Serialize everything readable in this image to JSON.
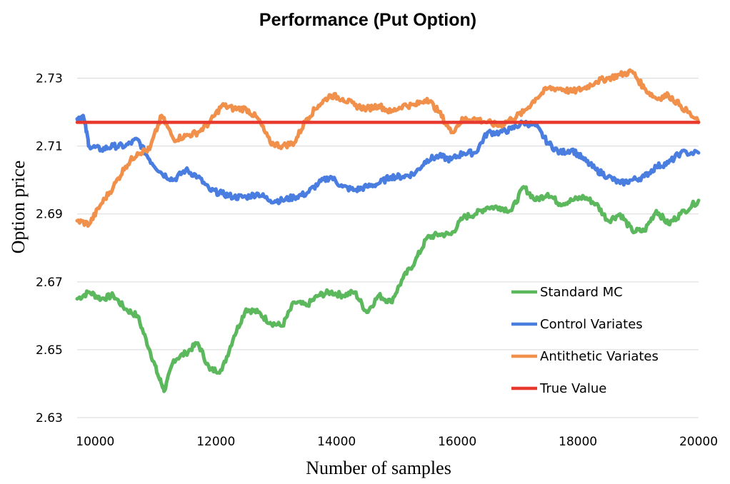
{
  "chart_data": {
    "type": "line",
    "title": "Performance (Put Option)",
    "xlabel": "Number of samples",
    "ylabel": "Option price",
    "xlim": [
      9700,
      20000
    ],
    "ylim": [
      2.63,
      2.74
    ],
    "x_ticks": [
      10000,
      12000,
      14000,
      16000,
      18000,
      20000
    ],
    "y_ticks": [
      2.63,
      2.65,
      2.67,
      2.69,
      2.71,
      2.73
    ],
    "y_tick_labels": [
      "2.63",
      "2.65",
      "2.67",
      "2.69",
      "2.71",
      "2.73"
    ],
    "grid": "horizontal",
    "legend_position": "bottom-right",
    "series": [
      {
        "name": "Standard MC",
        "color": "#5cb85c",
        "x": [
          9700,
          9900,
          10100,
          10300,
          10500,
          10700,
          10900,
          11050,
          11150,
          11300,
          11500,
          11700,
          11900,
          12100,
          12300,
          12500,
          12700,
          12900,
          13100,
          13300,
          13500,
          13700,
          13900,
          14100,
          14300,
          14500,
          14700,
          14900,
          15100,
          15300,
          15500,
          15700,
          15900,
          16100,
          16300,
          16500,
          16700,
          16900,
          17100,
          17300,
          17500,
          17700,
          17900,
          18100,
          18300,
          18500,
          18700,
          18900,
          19100,
          19300,
          19500,
          19700,
          20000
        ],
        "values": [
          2.665,
          2.667,
          2.665,
          2.666,
          2.662,
          2.66,
          2.65,
          2.642,
          2.638,
          2.647,
          2.649,
          2.652,
          2.644,
          2.644,
          2.654,
          2.662,
          2.661,
          2.658,
          2.657,
          2.664,
          2.663,
          2.666,
          2.667,
          2.666,
          2.667,
          2.661,
          2.666,
          2.664,
          2.671,
          2.676,
          2.683,
          2.684,
          2.684,
          2.689,
          2.69,
          2.692,
          2.692,
          2.691,
          2.698,
          2.694,
          2.696,
          2.693,
          2.694,
          2.695,
          2.693,
          2.688,
          2.69,
          2.685,
          2.685,
          2.691,
          2.687,
          2.69,
          2.694
        ]
      },
      {
        "name": "Control Variates",
        "color": "#4a7de0",
        "x": [
          9700,
          9800,
          9900,
          10100,
          10300,
          10500,
          10700,
          10900,
          11100,
          11300,
          11500,
          11700,
          11900,
          12100,
          12300,
          12500,
          12700,
          12900,
          13100,
          13300,
          13500,
          13700,
          13900,
          14100,
          14300,
          14500,
          14700,
          14900,
          15100,
          15300,
          15500,
          15700,
          15900,
          16100,
          16300,
          16500,
          16700,
          16900,
          17100,
          17300,
          17500,
          17700,
          17900,
          18100,
          18300,
          18500,
          18700,
          18900,
          19100,
          19300,
          19500,
          19700,
          20000
        ],
        "values": [
          2.718,
          2.719,
          2.71,
          2.709,
          2.71,
          2.71,
          2.712,
          2.706,
          2.702,
          2.7,
          2.703,
          2.701,
          2.697,
          2.696,
          2.695,
          2.695,
          2.696,
          2.694,
          2.694,
          2.695,
          2.696,
          2.699,
          2.701,
          2.698,
          2.697,
          2.698,
          2.699,
          2.701,
          2.701,
          2.702,
          2.706,
          2.707,
          2.706,
          2.708,
          2.708,
          2.714,
          2.714,
          2.715,
          2.717,
          2.716,
          2.711,
          2.708,
          2.709,
          2.706,
          2.703,
          2.701,
          2.699,
          2.7,
          2.701,
          2.704,
          2.705,
          2.708,
          2.708
        ]
      },
      {
        "name": "Antithetic Variates",
        "color": "#f0904a",
        "x": [
          9700,
          9900,
          10100,
          10300,
          10500,
          10700,
          10900,
          11100,
          11300,
          11500,
          11700,
          11900,
          12100,
          12300,
          12500,
          12700,
          12900,
          13100,
          13300,
          13500,
          13700,
          13900,
          14100,
          14300,
          14500,
          14700,
          14900,
          15100,
          15300,
          15500,
          15700,
          15900,
          16100,
          16300,
          16500,
          16700,
          16900,
          17100,
          17300,
          17500,
          17700,
          17900,
          18100,
          18300,
          18500,
          18700,
          18900,
          19100,
          19300,
          19500,
          19700,
          20000
        ],
        "values": [
          2.688,
          2.687,
          2.693,
          2.698,
          2.704,
          2.708,
          2.709,
          2.719,
          2.712,
          2.713,
          2.714,
          2.717,
          2.722,
          2.721,
          2.721,
          2.718,
          2.711,
          2.71,
          2.711,
          2.718,
          2.722,
          2.725,
          2.724,
          2.722,
          2.721,
          2.722,
          2.72,
          2.722,
          2.722,
          2.724,
          2.72,
          2.714,
          2.718,
          2.718,
          2.717,
          2.716,
          2.718,
          2.72,
          2.724,
          2.727,
          2.727,
          2.726,
          2.727,
          2.729,
          2.73,
          2.731,
          2.732,
          2.727,
          2.724,
          2.725,
          2.722,
          2.717
        ]
      },
      {
        "name": "True Value",
        "color": "#e8392e",
        "x": [
          9700,
          20000
        ],
        "values": [
          2.717,
          2.717
        ]
      }
    ]
  }
}
